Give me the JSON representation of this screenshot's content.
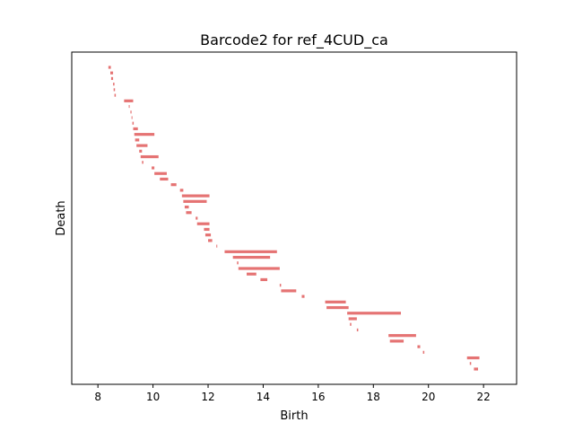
{
  "chart_data": {
    "type": "barcode",
    "title": "Barcode2 for ref_4CUD_ca",
    "xlabel": "Birth",
    "ylabel": "Death",
    "xlim": [
      7.05,
      23.2
    ],
    "xticks": [
      8,
      10,
      12,
      14,
      16,
      18,
      20,
      22
    ],
    "bar_color": "#e57373",
    "yticks_visible": false,
    "grid": false,
    "intervals": [
      [
        8.38,
        8.47
      ],
      [
        8.45,
        8.55
      ],
      [
        8.48,
        8.55
      ],
      [
        8.55,
        8.6
      ],
      [
        8.57,
        8.62
      ],
      [
        8.6,
        8.65
      ],
      [
        8.95,
        9.28
      ],
      [
        9.12,
        9.15
      ],
      [
        9.18,
        9.22
      ],
      [
        9.22,
        9.25
      ],
      [
        9.25,
        9.3
      ],
      [
        9.28,
        9.45
      ],
      [
        9.32,
        10.05
      ],
      [
        9.35,
        9.5
      ],
      [
        9.4,
        9.8
      ],
      [
        9.5,
        9.6
      ],
      [
        9.55,
        10.2
      ],
      [
        9.6,
        9.65
      ],
      [
        9.95,
        10.05
      ],
      [
        10.05,
        10.5
      ],
      [
        10.25,
        10.55
      ],
      [
        10.65,
        10.85
      ],
      [
        10.98,
        11.1
      ],
      [
        11.05,
        12.05
      ],
      [
        11.1,
        11.95
      ],
      [
        11.15,
        11.3
      ],
      [
        11.2,
        11.4
      ],
      [
        11.55,
        11.62
      ],
      [
        11.6,
        12.05
      ],
      [
        11.85,
        12.05
      ],
      [
        11.9,
        12.1
      ],
      [
        12.0,
        12.15
      ],
      [
        12.3,
        12.33
      ],
      [
        12.6,
        14.5
      ],
      [
        12.9,
        14.25
      ],
      [
        13.05,
        13.1
      ],
      [
        13.1,
        14.6
      ],
      [
        13.4,
        13.75
      ],
      [
        13.9,
        14.15
      ],
      [
        14.6,
        14.65
      ],
      [
        14.65,
        15.2
      ],
      [
        15.4,
        15.5
      ],
      [
        16.25,
        17.0
      ],
      [
        16.3,
        17.1
      ],
      [
        17.05,
        19.0
      ],
      [
        17.1,
        17.4
      ],
      [
        17.15,
        17.2
      ],
      [
        17.4,
        17.45
      ],
      [
        18.55,
        19.55
      ],
      [
        18.6,
        19.1
      ],
      [
        19.6,
        19.7
      ],
      [
        19.8,
        19.85
      ],
      [
        21.4,
        21.85
      ],
      [
        21.5,
        21.55
      ],
      [
        21.65,
        21.8
      ]
    ]
  }
}
